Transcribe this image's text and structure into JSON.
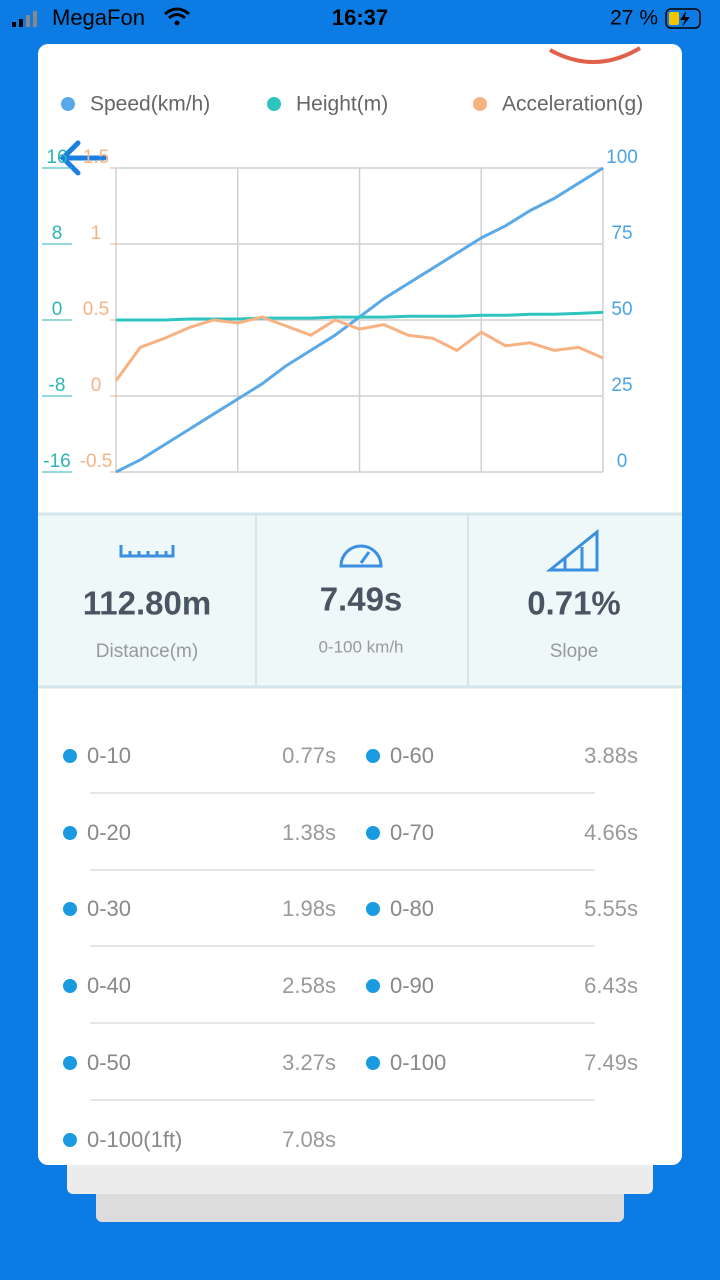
{
  "status_bar": {
    "carrier": "MegaFon",
    "time": "16:37",
    "battery": "27 %"
  },
  "chart_data": {
    "type": "line",
    "series": [
      {
        "name": "Speed(km/h)",
        "color": "#5aa9e6",
        "axis": "y2",
        "values": [
          0,
          4,
          9,
          14,
          19,
          24,
          29,
          35,
          40,
          45,
          51,
          57,
          62,
          67,
          72,
          77,
          81,
          86,
          90,
          95,
          100
        ]
      },
      {
        "name": "Height(m)",
        "color": "#2ec4c0",
        "axis": "y",
        "values": [
          0,
          0,
          0,
          0.1,
          0.1,
          0.1,
          0.2,
          0.2,
          0.2,
          0.3,
          0.3,
          0.3,
          0.4,
          0.4,
          0.4,
          0.5,
          0.5,
          0.6,
          0.6,
          0.7,
          0.8
        ]
      },
      {
        "name": "Acceleration(g)",
        "color": "#f7b283",
        "axis": "y3",
        "values": [
          0.1,
          0.32,
          0.38,
          0.45,
          0.5,
          0.48,
          0.52,
          0.46,
          0.4,
          0.5,
          0.44,
          0.47,
          0.4,
          0.38,
          0.3,
          0.42,
          0.33,
          0.35,
          0.3,
          0.32,
          0.25
        ]
      }
    ],
    "ylim": [
      -16,
      16
    ],
    "yticks": [
      -16,
      -8,
      0,
      8,
      16
    ],
    "y3lim": [
      -0.5,
      1.5
    ],
    "y3ticks": [
      -0.5,
      0,
      0.5,
      1,
      1.5
    ],
    "y2lim": [
      0,
      100
    ],
    "y2ticks": [
      0,
      25,
      50,
      75,
      100
    ],
    "grid": true
  },
  "stats": [
    {
      "value": "112.80m",
      "label": "Distance(m)"
    },
    {
      "value": "7.49s",
      "label": "0-100 km/h"
    },
    {
      "value": "0.71%",
      "label": "Slope"
    }
  ],
  "splits": [
    {
      "range": "0-10",
      "time": "0.77s"
    },
    {
      "range": "0-20",
      "time": "1.38s"
    },
    {
      "range": "0-30",
      "time": "1.98s"
    },
    {
      "range": "0-40",
      "time": "2.58s"
    },
    {
      "range": "0-50",
      "time": "3.27s"
    },
    {
      "range": "0-60",
      "time": "3.88s"
    },
    {
      "range": "0-70",
      "time": "4.66s"
    },
    {
      "range": "0-80",
      "time": "5.55s"
    },
    {
      "range": "0-90",
      "time": "6.43s"
    },
    {
      "range": "0-100",
      "time": "7.49s"
    },
    {
      "range": "0-100(1ft)",
      "time": "7.08s"
    }
  ]
}
